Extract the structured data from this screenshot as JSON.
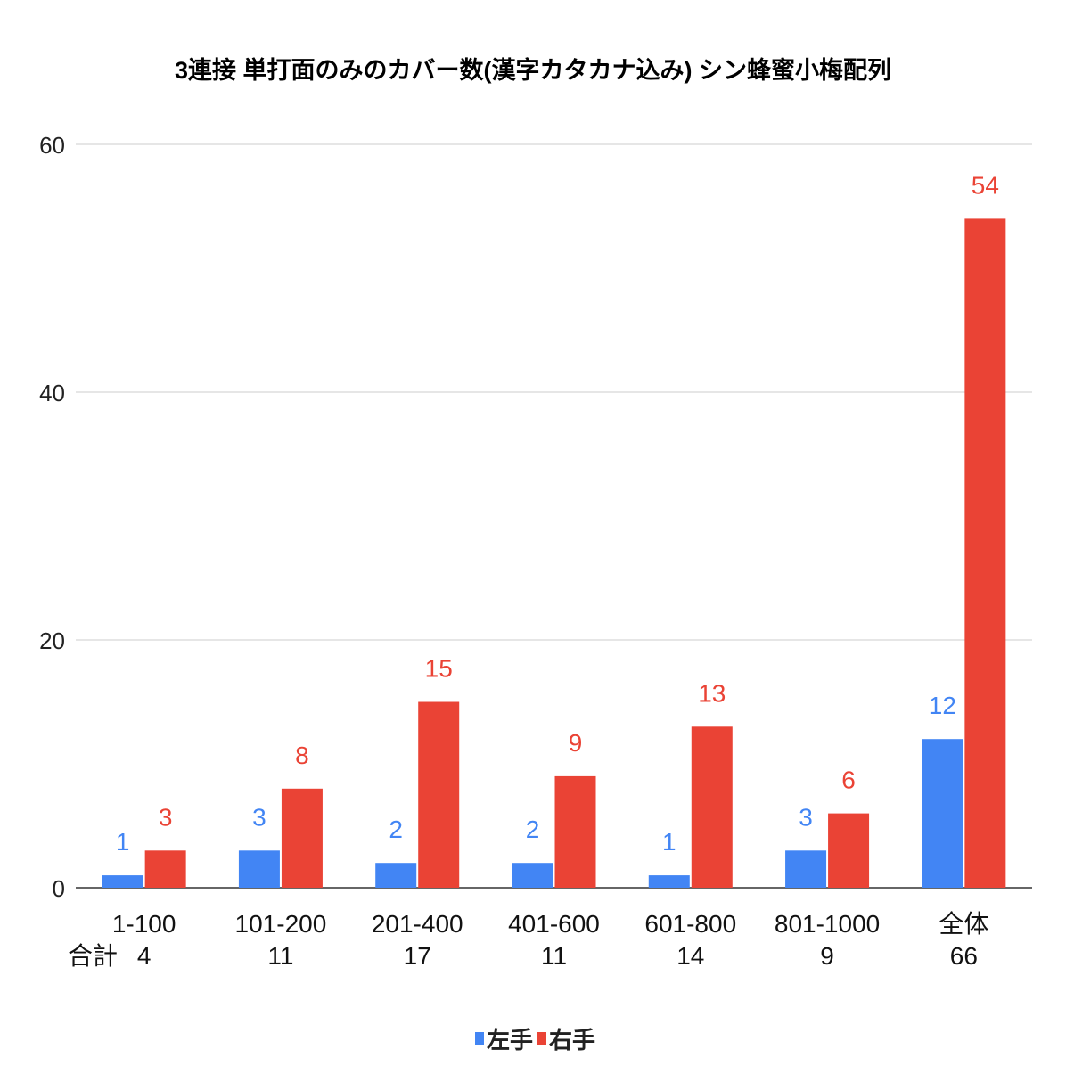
{
  "chart_data": {
    "type": "bar",
    "title": "3連接 単打面のみのカバー数(漢字カタカナ込み) シン蜂蜜小梅配列",
    "xlabel": "",
    "ylabel": "",
    "ylim": [
      0,
      60
    ],
    "yticks": [
      "0",
      "20",
      "40",
      "60"
    ],
    "grid": true,
    "legend_position": "bottom",
    "total_label": "合計",
    "categories": [
      "1-100",
      "101-200",
      "201-400",
      "401-600",
      "601-800",
      "801-1000",
      "全体"
    ],
    "totals": [
      "4",
      "11",
      "17",
      "11",
      "14",
      "9",
      "66"
    ],
    "series": [
      {
        "name": "左手",
        "color": "#4285f4",
        "values": [
          1,
          3,
          2,
          2,
          1,
          3,
          12
        ]
      },
      {
        "name": "右手",
        "color": "#ea4335",
        "values": [
          3,
          8,
          15,
          9,
          13,
          6,
          54
        ]
      }
    ]
  }
}
